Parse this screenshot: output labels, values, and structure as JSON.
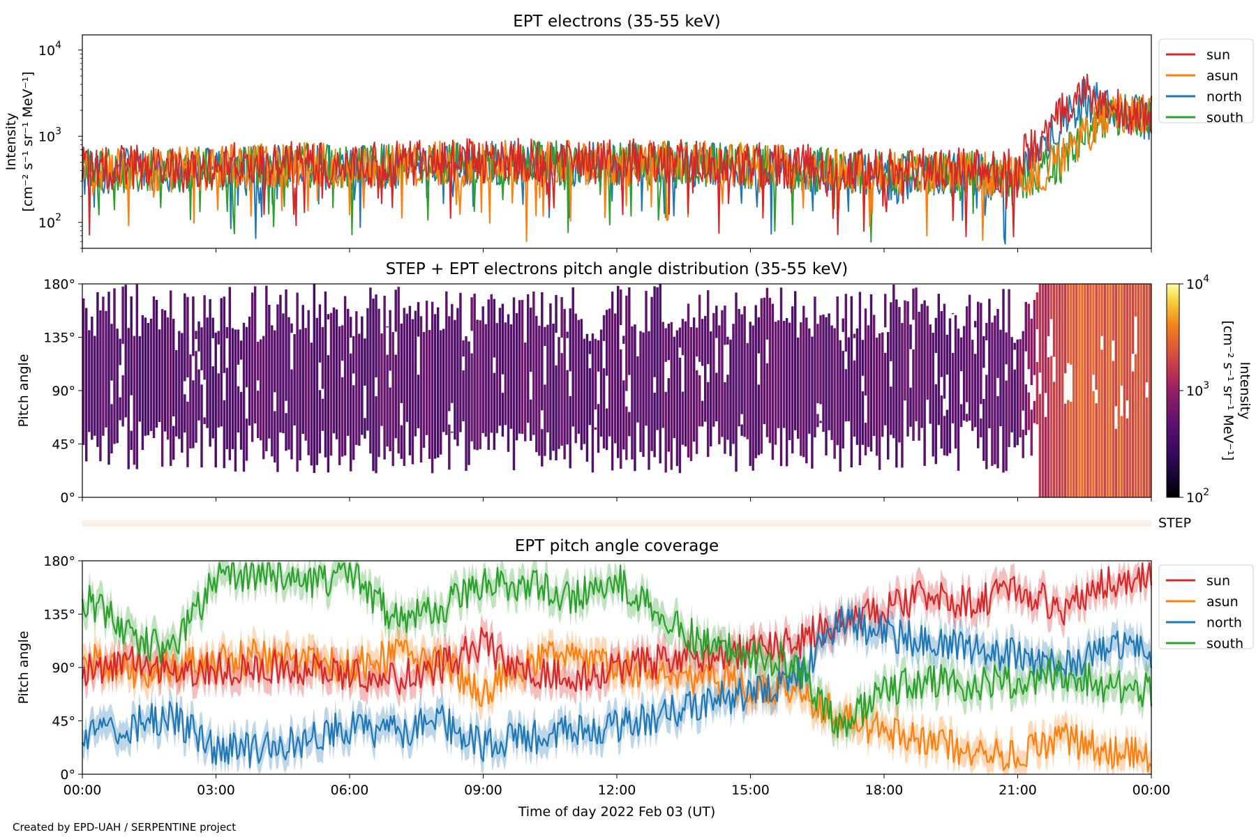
{
  "footer": {
    "credit": "Created by EPD-UAH / SERPENTINE project"
  },
  "chart_data": [
    {
      "type": "line",
      "title": "EPT electrons (35-55 keV)",
      "ylabel_line1": "Intensity",
      "ylabel_line2": "[cm⁻² s⁻¹ sr⁻¹ MeV⁻¹]",
      "yscale": "log",
      "ylim": [
        50,
        15000
      ],
      "xlim": [
        0,
        24
      ],
      "ytick_labels": [
        {
          "base": "10",
          "exp": "2",
          "value": 100
        },
        {
          "base": "10",
          "exp": "3",
          "value": 1000
        },
        {
          "base": "10",
          "exp": "4",
          "value": 10000
        }
      ],
      "legend_position": "outside-right-top",
      "note": "noisy time series; representative hourly values",
      "series": [
        {
          "name": "sun",
          "color": "#d62728",
          "x": [
            0,
            1,
            2,
            3,
            4,
            5,
            6,
            7,
            8,
            9,
            10,
            11,
            12,
            13,
            14,
            15,
            16,
            17,
            18,
            19,
            20,
            20.5,
            21,
            21.5,
            22,
            22.5,
            23,
            23.5,
            24
          ],
          "y": [
            420,
            450,
            420,
            450,
            480,
            500,
            460,
            480,
            500,
            520,
            530,
            500,
            510,
            520,
            500,
            480,
            450,
            430,
            420,
            400,
            420,
            380,
            420,
            900,
            1800,
            3000,
            2200,
            1900,
            1700
          ]
        },
        {
          "name": "asun",
          "color": "#ff7f0e",
          "x": [
            0,
            1,
            2,
            3,
            4,
            5,
            6,
            7,
            8,
            9,
            10,
            11,
            12,
            13,
            14,
            15,
            16,
            17,
            18,
            19,
            20,
            20.5,
            21,
            21.5,
            22,
            22.5,
            23,
            23.5,
            24
          ],
          "y": [
            400,
            420,
            410,
            430,
            450,
            470,
            440,
            460,
            480,
            500,
            510,
            490,
            500,
            500,
            480,
            460,
            430,
            410,
            390,
            370,
            380,
            340,
            330,
            380,
            500,
            1000,
            1900,
            2000,
            1800
          ]
        },
        {
          "name": "north",
          "color": "#1f77b4",
          "x": [
            0,
            1,
            2,
            3,
            4,
            5,
            6,
            7,
            8,
            9,
            10,
            11,
            12,
            13,
            14,
            15,
            16,
            17,
            18,
            19,
            20,
            20.5,
            21,
            21.5,
            22,
            22.5,
            23,
            23.5,
            24
          ],
          "y": [
            380,
            400,
            390,
            410,
            430,
            450,
            420,
            440,
            460,
            480,
            490,
            470,
            480,
            480,
            460,
            440,
            410,
            390,
            370,
            350,
            360,
            320,
            330,
            700,
            1500,
            2800,
            2000,
            1800,
            1600
          ]
        },
        {
          "name": "south",
          "color": "#2ca02c",
          "x": [
            0,
            1,
            2,
            3,
            4,
            5,
            6,
            7,
            8,
            9,
            10,
            11,
            12,
            13,
            14,
            15,
            16,
            17,
            18,
            19,
            20,
            20.5,
            21,
            21.5,
            22,
            22.5,
            23,
            23.5,
            24
          ],
          "y": [
            390,
            410,
            400,
            420,
            440,
            460,
            430,
            450,
            470,
            490,
            500,
            480,
            490,
            490,
            470,
            450,
            420,
            400,
            380,
            360,
            370,
            330,
            320,
            360,
            520,
            1000,
            1700,
            1900,
            1700
          ]
        }
      ]
    },
    {
      "type": "heatmap",
      "title": "STEP + EPT electrons pitch angle distribution (35-55 keV)",
      "ylabel": "Pitch angle",
      "ylim": [
        0,
        180
      ],
      "xlim": [
        0,
        24
      ],
      "ytick_labels": [
        "0°",
        "45°",
        "90°",
        "135°",
        "180°"
      ],
      "colorbar": {
        "label": "Intensity",
        "units": "[cm⁻² s⁻¹ sr⁻¹ MeV⁻¹]",
        "scale": "log",
        "range": [
          100,
          10000
        ],
        "tick_labels": [
          {
            "base": "10",
            "exp": "2",
            "value": 100
          },
          {
            "base": "10",
            "exp": "3",
            "value": 1000
          },
          {
            "base": "10",
            "exp": "4",
            "value": 10000
          }
        ]
      },
      "note": "intensity ~400-600 before 21:30 UT, rising to ~2000-3000 after",
      "intensity_profile": {
        "x": [
          0,
          21,
          21.5,
          22,
          22.5,
          24
        ],
        "value": [
          450,
          500,
          1300,
          2000,
          2600,
          2200
        ]
      }
    },
    {
      "type": "heatmap",
      "label": "STEP",
      "note": "thin STEP coverage strip"
    },
    {
      "type": "line",
      "title": "EPT pitch angle coverage",
      "ylabel": "Pitch angle",
      "ylim": [
        0,
        180
      ],
      "xlim": [
        0,
        24
      ],
      "ytick_labels": [
        "0°",
        "45°",
        "90°",
        "135°",
        "180°"
      ],
      "xtick_labels": [
        "00:00",
        "03:00",
        "06:00",
        "09:00",
        "12:00",
        "15:00",
        "18:00",
        "21:00",
        "00:00"
      ],
      "xlabel": "Time of day 2022 Feb 03 (UT)",
      "legend_position": "outside-right-top",
      "note": "representative hourly values with shaded spread",
      "series": [
        {
          "name": "sun",
          "color": "#d62728",
          "x": [
            0,
            1,
            2,
            3,
            4,
            5,
            6,
            7,
            8,
            9,
            10,
            11,
            12,
            13,
            14,
            15,
            16,
            17,
            18,
            19,
            20,
            21,
            22,
            23,
            24
          ],
          "y": [
            85,
            95,
            90,
            88,
            92,
            90,
            85,
            80,
            90,
            110,
            85,
            80,
            90,
            95,
            100,
            105,
            110,
            130,
            140,
            150,
            145,
            155,
            140,
            160,
            165
          ]
        },
        {
          "name": "asun",
          "color": "#ff7f0e",
          "x": [
            0,
            1,
            2,
            3,
            4,
            5,
            6,
            7,
            8,
            9,
            10,
            11,
            12,
            13,
            14,
            15,
            16,
            17,
            18,
            19,
            20,
            21,
            22,
            23,
            24
          ],
          "y": [
            100,
            85,
            90,
            95,
            100,
            95,
            90,
            100,
            95,
            70,
            95,
            100,
            90,
            85,
            80,
            75,
            70,
            50,
            35,
            25,
            20,
            15,
            30,
            20,
            15
          ]
        },
        {
          "name": "north",
          "color": "#1f77b4",
          "x": [
            0,
            1,
            2,
            3,
            4,
            5,
            6,
            7,
            8,
            9,
            10,
            11,
            12,
            13,
            14,
            15,
            16,
            17,
            18,
            19,
            20,
            21,
            22,
            23,
            24
          ],
          "y": [
            30,
            40,
            50,
            20,
            20,
            30,
            40,
            35,
            45,
            25,
            30,
            35,
            40,
            50,
            60,
            70,
            80,
            130,
            120,
            110,
            105,
            100,
            90,
            110,
            100
          ]
        },
        {
          "name": "south",
          "color": "#2ca02c",
          "x": [
            0,
            1,
            2,
            3,
            4,
            5,
            6,
            7,
            8,
            9,
            10,
            11,
            12,
            13,
            14,
            15,
            16,
            17,
            18,
            19,
            20,
            21,
            22,
            23,
            24
          ],
          "y": [
            150,
            120,
            100,
            165,
            170,
            160,
            170,
            130,
            140,
            160,
            160,
            150,
            165,
            130,
            110,
            100,
            95,
            40,
            70,
            80,
            75,
            80,
            85,
            75,
            70
          ]
        }
      ]
    }
  ]
}
